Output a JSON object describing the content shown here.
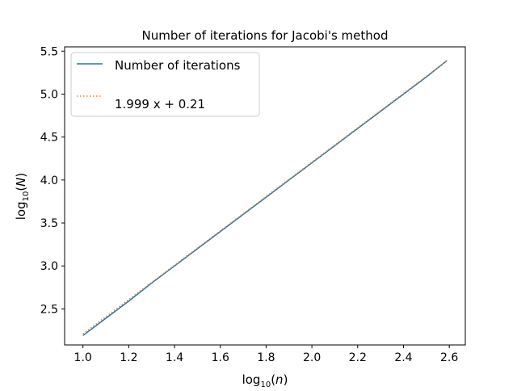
{
  "chart_data": {
    "type": "line",
    "title": "Number of iterations for Jacobi's method",
    "xlabel": {
      "base": "log",
      "sub": "10",
      "arg": "n"
    },
    "ylabel": {
      "base": "log",
      "sub": "10",
      "arg": "N"
    },
    "xlim": [
      0.92,
      2.67
    ],
    "ylim": [
      2.08,
      5.55
    ],
    "xticks": [
      "1.0",
      "1.2",
      "1.4",
      "1.6",
      "1.8",
      "2.0",
      "2.2",
      "2.4",
      "2.6"
    ],
    "yticks": [
      "2.5",
      "3.0",
      "3.5",
      "4.0",
      "4.5",
      "5.0",
      "5.5"
    ],
    "grid": false,
    "legend_position": "top-left",
    "series": [
      {
        "name": "Number of iterations",
        "style": "solid",
        "color": "#1f77b4",
        "x": [
          1.0,
          1.1,
          1.2,
          1.3,
          1.4,
          1.5,
          1.6,
          1.7,
          1.8,
          1.9,
          2.0,
          2.1,
          2.2,
          2.3,
          2.4,
          2.5,
          2.59
        ],
        "y": [
          2.19,
          2.39,
          2.59,
          2.8,
          3.0,
          3.2,
          3.4,
          3.6,
          3.8,
          4.0,
          4.2,
          4.4,
          4.6,
          4.8,
          5.0,
          5.2,
          5.39
        ]
      },
      {
        "name": "1.999 x + 0.21",
        "style": "dotted",
        "color": "#ff7f0e",
        "x": [
          1.0,
          2.59
        ],
        "y": [
          2.209,
          5.388
        ]
      }
    ]
  }
}
